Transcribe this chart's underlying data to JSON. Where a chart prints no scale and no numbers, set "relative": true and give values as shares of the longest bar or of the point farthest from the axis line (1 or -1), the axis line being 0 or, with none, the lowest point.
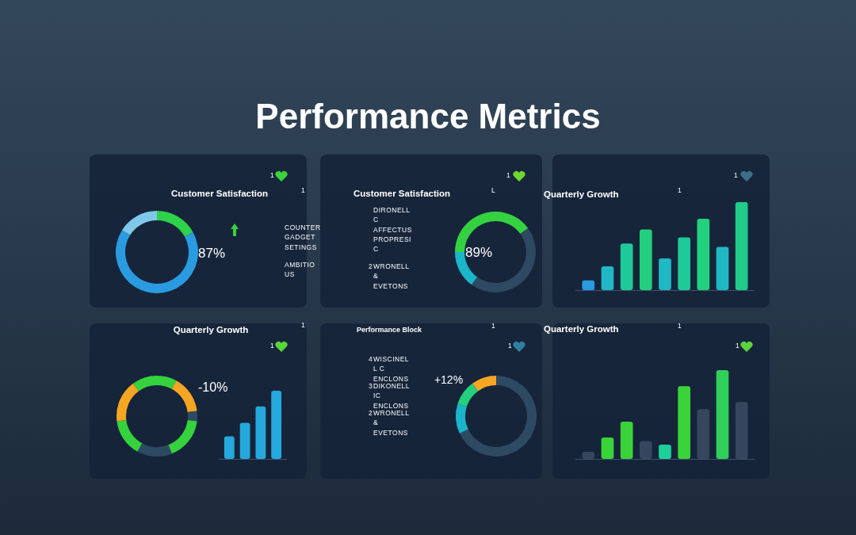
{
  "chart_data": [
    {
      "type": "other",
      "title": "Performance Metrics"
    },
    {
      "type": "donut",
      "title": "Customer Satisfaction",
      "categories": [
        null,
        null,
        null
      ],
      "values": [
        17,
        67,
        16
      ],
      "colors": [
        "#2ed24a",
        "#2a9be0",
        "#7fc8ea"
      ],
      "annotations": [
        "87%",
        "1",
        "1",
        "COUNTER GADGET SETINGS",
        "AMBITIOUS"
      ]
    },
    {
      "type": "donut",
      "title": "Customer Satisfaction",
      "categories": [
        null,
        null,
        null,
        null
      ],
      "values": [
        15,
        45,
        15,
        25
      ],
      "colors": [
        "#34d240",
        "#2e4a62",
        "#1bb5c9",
        "#34d240"
      ],
      "annotations": [
        "89%",
        "1",
        "L",
        "DIRONELL C AFFECTUS PROPRESI C",
        "2",
        "WRONELL & EVETONS"
      ]
    },
    {
      "type": "bar",
      "title": "Quarterly Growth",
      "relative": true,
      "categories": [
        null,
        null,
        null,
        null,
        null,
        null,
        null,
        null,
        null
      ],
      "values": [
        0.11,
        0.27,
        0.53,
        0.69,
        0.36,
        0.6,
        0.81,
        0.49,
        1
      ],
      "colors": [
        "#2a9be0",
        "#1fb8c4",
        "#1fc99a",
        "#22d07e",
        "#1fb8c4",
        "#1fc99a",
        "#22d07e",
        "#1fb8c4",
        "#20cc88"
      ],
      "annotations": [
        "1",
        "1"
      ]
    },
    {
      "type": "donut",
      "title": "Quarterly Growth",
      "categories": [
        null,
        null,
        null,
        null,
        null,
        null,
        null,
        null
      ],
      "values": [
        8,
        15,
        4,
        17,
        14,
        15,
        17,
        10
      ],
      "colors": [
        "#35d23e",
        "#f5a623",
        "#2e4a62",
        "#35d23e",
        "#2e4a62",
        "#35d23e",
        "#f5a623",
        "#35d23e"
      ],
      "annotations": [
        "-10%",
        "1",
        "1"
      ]
    },
    {
      "type": "bar",
      "relative": true,
      "categories": [
        null,
        null,
        null,
        null
      ],
      "values": [
        0.33,
        0.53,
        0.77,
        1
      ],
      "color": "#25a8dc"
    },
    {
      "type": "donut",
      "title": "Performance Block",
      "categories": [
        null,
        null,
        null,
        null
      ],
      "values": [
        68,
        12,
        10,
        10
      ],
      "colors": [
        "#2e4a62",
        "#1bb5c9",
        "#22d07e",
        "#f5a623"
      ],
      "annotations": [
        "1",
        "1",
        "4",
        "WISCINELL C ENCLONS",
        "3",
        "DIKONELL IC ENCLONS",
        "2",
        "WRONELL & EVETONS",
        "+12%"
      ]
    },
    {
      "type": "bar",
      "title": "Quarterly Growth",
      "relative": true,
      "categories": [
        null,
        null,
        null,
        null,
        null,
        null,
        null,
        null,
        null
      ],
      "values": [
        0.08,
        0.24,
        0.42,
        0.2,
        0.16,
        0.82,
        0.56,
        1,
        0.64
      ],
      "colors": [
        "#34475e",
        "#3ad33a",
        "#3ad33a",
        "#34475e",
        "#1ecf9a",
        "#3ad33a",
        "#34475e",
        "#2fcf5a",
        "#34475e"
      ],
      "annotations": [
        "1",
        "1"
      ]
    }
  ]
}
